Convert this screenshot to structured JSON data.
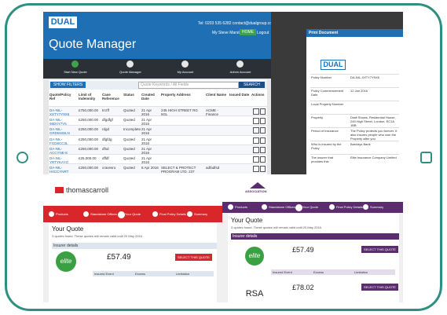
{
  "quote_manager": {
    "logo": "DUAL",
    "contact": "Tel: 0203 535 6282   contact@dualgroup.com",
    "user": "My Steve Marston",
    "home": "HOME",
    "logout": "Logout",
    "title": "Quote Manager",
    "nav": [
      "Start New Quote",
      "Quote Manager",
      "My Account",
      "Admin Account"
    ],
    "show_filters": "SHOW FILTERS",
    "search_placeholder": "Quote Keywords / All Fields",
    "search": "SEARCH",
    "table": {
      "columns": [
        "Quote/Policy Ref",
        "Limit of Indemnity",
        "Case Reference",
        "Status",
        "Created Date",
        "Property Address",
        "Client Name",
        "Issued Date",
        "Actions"
      ],
      "rows": [
        [
          "DA-NIL-XXTY7Y9X6",
          "£750,000.00",
          "trrzff",
          "Quoted",
          "21 Apr 2016",
          "245 HIGH STREET RG 5GL",
          "ACME - Finance"
        ],
        [
          "DA-NIL-98D4Y7V5",
          "£250,000.00",
          "dfgdfgf",
          "Quoted",
          "21 Apr 2016",
          null,
          null
        ],
        [
          "DA-NIL-GRD5NWLN",
          "£250,000.00",
          "rdgd",
          "Incomplete",
          "21 Apr 2016",
          null,
          null
        ],
        [
          "DA-NIL-FGD8CC3L",
          "£250,000.00",
          "dfgfdg",
          "Quoted",
          "21 Apr 2016",
          null,
          null
        ],
        [
          "DA-NIL-ACCYNE-8",
          "£250,000.00",
          "dfsd",
          "Quoted",
          "21 Apr 2016",
          null,
          null
        ],
        [
          "DA-NIL-YRTYKAYG",
          "£25,000.00",
          "dffdf",
          "Quoted",
          "21 Apr 2016",
          null,
          null
        ],
        [
          "DA-NIL-H4CCYNRT",
          "£250,000.00",
          "cravesro",
          "Quoted",
          "8 Apr 2016",
          "SELECT & PROTECT PROGRAM LTD. 237",
          "adfadfsd"
        ]
      ]
    }
  },
  "print_document": {
    "title": "Print Document",
    "logo": "DUAL",
    "fields": [
      [
        "Policy Number",
        "DA-NIL-XXTY7Y9X6"
      ],
      [
        "Policy Commencement Date",
        "12 Jan 2016"
      ],
      [
        "Local Property Number",
        ""
      ],
      [
        "Property",
        "Draft Shows, Residential House, 245 High Street, London, EC1A 1BB"
      ],
      [
        "Period of Insurance",
        "The Policy protects you forever. It also insures people who own the Property after you"
      ],
      [
        "Who is insured by the Policy",
        "Barclays Bank"
      ],
      [
        "The insurer that provides this",
        "Elite Insurance Company Limited"
      ]
    ]
  },
  "thomas_carroll": {
    "logo": "thomascarroll",
    "steps": [
      "Products",
      "Standalone Offices",
      "Your Quote",
      "Final Policy Details",
      "Summary"
    ],
    "heading": "Your Quote",
    "note": "3 quotes found. These quotes will remain valid until 20 May 2016.",
    "insurer_details": "Insurer details",
    "insurer": "elite",
    "price": "£57.49",
    "select": "SELECT THIS QUOTE",
    "cols": [
      "Insured Event",
      "Excess",
      "Limitation"
    ]
  },
  "manchester": {
    "logo": "ASSOCIATION",
    "steps": [
      "Products",
      "Standalone Offices",
      "Your Quote",
      "Final Policy Details",
      "Summary"
    ],
    "heading": "Your Quote",
    "note": "3 quotes found. These quotes will remain valid until 20 May 2016.",
    "insurer_details": "Insurer details",
    "quotes": [
      {
        "insurer": "elite",
        "price": "£57.49"
      },
      {
        "insurer": "RSA",
        "price": "£78.02"
      }
    ],
    "select": "SELECT THIS QUOTE",
    "cols": [
      "Insured Event",
      "Excess",
      "Limitation"
    ]
  }
}
